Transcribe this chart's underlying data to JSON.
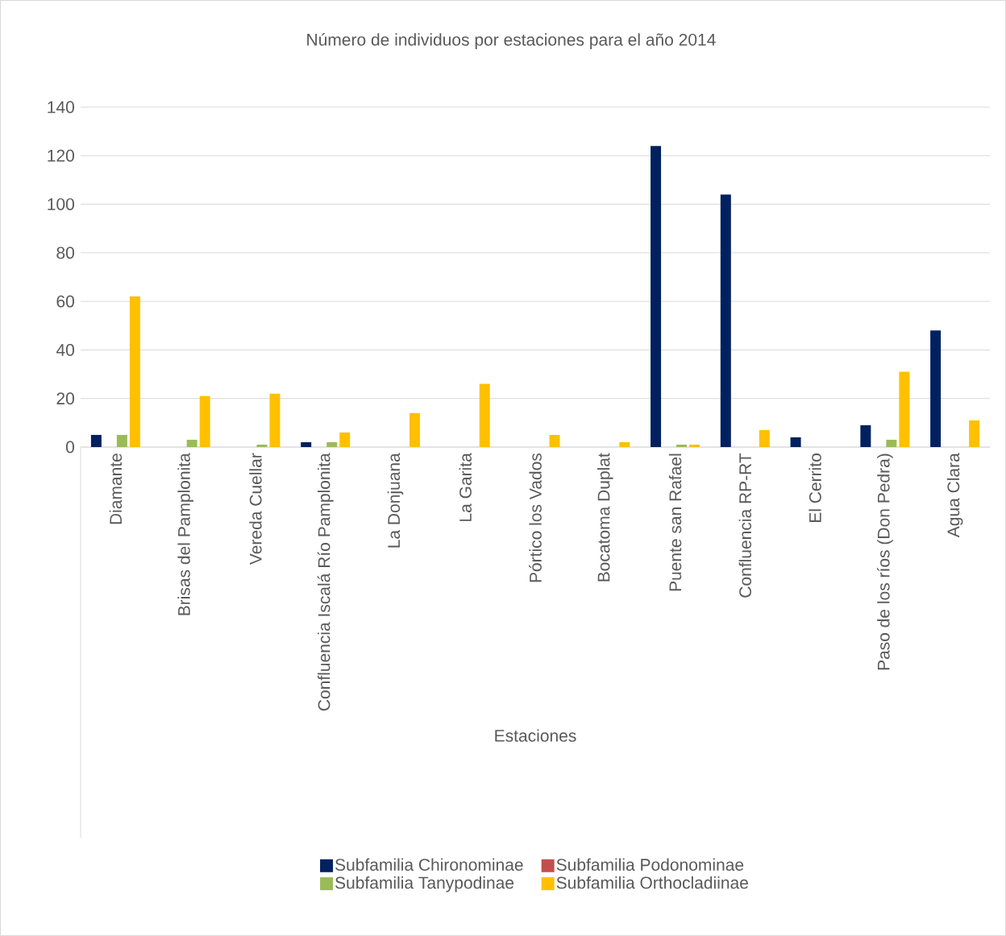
{
  "chart_data": {
    "type": "bar",
    "title": "Número de individuos por estaciones para el año 2014",
    "xlabel": "Estaciones",
    "categories": [
      "Diamante",
      "Brisas del Pamplonita",
      "Vereda Cuellar",
      "Confluencia Iscalá Río Pamplonita",
      "La Donjuana",
      "La Garita",
      "Pórtico los Vados",
      "Bocatoma Duplat",
      "Puente san Rafael",
      "Confluencia RP-RT",
      "El Cerrito",
      "Paso de los ríos (Don Pedra)",
      "Agua Clara"
    ],
    "series": [
      {
        "name": "Subfamilia Chironominae",
        "color": "#002060",
        "values": [
          5,
          0,
          0,
          2,
          0,
          0,
          0,
          0,
          124,
          104,
          4,
          9,
          48
        ]
      },
      {
        "name": "Subfamilia Podonominae",
        "color": "#c0504d",
        "values": [
          0,
          0,
          0,
          0,
          0,
          0,
          0,
          0,
          0,
          0,
          0,
          0,
          0
        ]
      },
      {
        "name": "Subfamilia Tanypodinae",
        "color": "#9bbb59",
        "values": [
          5,
          3,
          1,
          2,
          0,
          0,
          0,
          0,
          1,
          0,
          0,
          3,
          0
        ]
      },
      {
        "name": "Subfamilia Orthocladiinae",
        "color": "#ffc000",
        "values": [
          62,
          21,
          22,
          6,
          14,
          26,
          5,
          2,
          1,
          7,
          0,
          31,
          11
        ]
      }
    ],
    "ylim": [
      0,
      140
    ],
    "yticks": [
      0,
      20,
      40,
      60,
      80,
      100,
      120,
      140
    ],
    "grid": "y",
    "legend": "bottom"
  }
}
